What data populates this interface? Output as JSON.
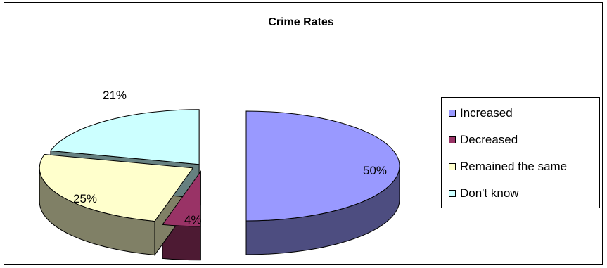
{
  "chart_data": {
    "type": "pie",
    "title": "Crime Rates",
    "categories": [
      "Increased",
      "Decreased",
      "Remained the same",
      "Don't know"
    ],
    "values": [
      50,
      4,
      25,
      21
    ],
    "data_labels": [
      "50%",
      "4%",
      "25%",
      "21%"
    ],
    "colors": [
      "#9999ff",
      "#993366",
      "#ffffcc",
      "#ccffff"
    ],
    "side_colors": [
      "#4d4d80",
      "#4d1a33",
      "#808066",
      "#668080"
    ],
    "legend_position": "right",
    "three_d": true,
    "exploded": true
  }
}
